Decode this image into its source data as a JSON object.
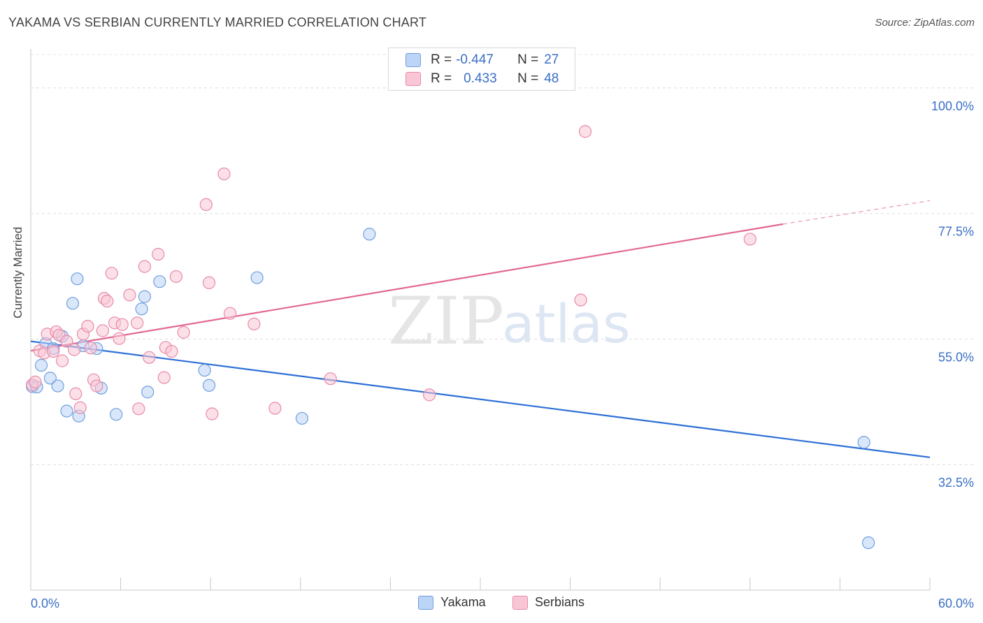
{
  "header": {
    "title": "YAKAMA VS SERBIAN CURRENTLY MARRIED CORRELATION CHART",
    "source": "Source: ZipAtlas.com"
  },
  "legend": {
    "yakama": {
      "r_label": "R =",
      "r_value": "-0.447",
      "n_label": "N =",
      "n_value": "27"
    },
    "serbians": {
      "r_label": "R =",
      "r_value": "0.433",
      "n_label": "N =",
      "n_value": "48"
    },
    "bottom": [
      "Yakama",
      "Serbians"
    ]
  },
  "colors": {
    "yakama_fill": "#bcd4f5",
    "yakama_stroke": "#6f9fe0",
    "yakama_line": "#2c6fd6",
    "serbians_fill": "#f9c6d5",
    "serbians_stroke": "#e88aa8",
    "serbians_line": "#e26893",
    "axis_text": "#3a6fc6"
  },
  "watermark": {
    "zip": "ZIP",
    "atlas": "atlas"
  },
  "chart_data": {
    "type": "scatter",
    "title": "YAKAMA VS SERBIAN CURRENTLY MARRIED CORRELATION CHART",
    "xlabel": "",
    "ylabel": "Currently Married",
    "xlim": [
      0,
      60
    ],
    "ylim": [
      10,
      107
    ],
    "x_tick_labels": [
      "0.0%",
      "60.0%"
    ],
    "y_ticks": [
      32.5,
      55.0,
      77.5,
      100.0
    ],
    "y_tick_labels": [
      "32.5%",
      "55.0%",
      "77.5%",
      "100.0%"
    ],
    "grid": true,
    "legend_position": "top-center",
    "series": [
      {
        "name": "Yakama",
        "points": [
          [
            0.1,
            46.5
          ],
          [
            0.4,
            46.4
          ],
          [
            0.7,
            50.3
          ],
          [
            1.0,
            54.2
          ],
          [
            1.3,
            48.0
          ],
          [
            1.5,
            53.3
          ],
          [
            1.8,
            46.6
          ],
          [
            2.1,
            55.5
          ],
          [
            2.4,
            42.1
          ],
          [
            2.8,
            61.4
          ],
          [
            3.1,
            65.8
          ],
          [
            3.2,
            41.2
          ],
          [
            3.5,
            53.8
          ],
          [
            4.4,
            53.3
          ],
          [
            4.7,
            46.2
          ],
          [
            5.7,
            41.5
          ],
          [
            7.4,
            60.4
          ],
          [
            7.6,
            62.6
          ],
          [
            7.8,
            45.5
          ],
          [
            8.6,
            65.3
          ],
          [
            11.6,
            49.4
          ],
          [
            11.9,
            46.7
          ],
          [
            15.1,
            66.0
          ],
          [
            18.1,
            40.8
          ],
          [
            22.6,
            73.8
          ],
          [
            55.6,
            36.5
          ],
          [
            55.9,
            18.5
          ]
        ],
        "trend": {
          "x0": 0,
          "y0": 54.6,
          "x1": 60,
          "y1": 33.8
        }
      },
      {
        "name": "Serbians",
        "points": [
          [
            0.1,
            46.8
          ],
          [
            0.3,
            47.3
          ],
          [
            0.6,
            52.9
          ],
          [
            0.9,
            52.5
          ],
          [
            1.1,
            55.9
          ],
          [
            1.5,
            52.8
          ],
          [
            1.7,
            56.3
          ],
          [
            1.9,
            55.7
          ],
          [
            2.1,
            51.1
          ],
          [
            2.4,
            54.6
          ],
          [
            2.9,
            53.1
          ],
          [
            3.0,
            45.2
          ],
          [
            3.3,
            42.7
          ],
          [
            3.5,
            55.9
          ],
          [
            3.8,
            57.3
          ],
          [
            4.0,
            53.4
          ],
          [
            4.2,
            47.7
          ],
          [
            4.4,
            46.6
          ],
          [
            4.8,
            56.5
          ],
          [
            4.9,
            62.3
          ],
          [
            5.1,
            61.8
          ],
          [
            5.4,
            66.8
          ],
          [
            5.6,
            57.9
          ],
          [
            5.9,
            55.1
          ],
          [
            6.1,
            57.6
          ],
          [
            6.6,
            62.9
          ],
          [
            7.1,
            57.9
          ],
          [
            7.2,
            42.5
          ],
          [
            7.6,
            68.0
          ],
          [
            7.9,
            51.7
          ],
          [
            8.5,
            70.2
          ],
          [
            8.9,
            48.1
          ],
          [
            9.0,
            53.5
          ],
          [
            9.4,
            52.8
          ],
          [
            9.7,
            66.2
          ],
          [
            10.2,
            56.2
          ],
          [
            11.7,
            79.1
          ],
          [
            11.9,
            65.1
          ],
          [
            12.1,
            41.6
          ],
          [
            12.9,
            84.6
          ],
          [
            13.3,
            59.6
          ],
          [
            14.9,
            57.7
          ],
          [
            16.3,
            42.6
          ],
          [
            20.0,
            47.9
          ],
          [
            26.6,
            45.0
          ],
          [
            36.7,
            62.0
          ],
          [
            37.0,
            92.2
          ],
          [
            48.0,
            72.9
          ]
        ],
        "trend": {
          "x0": 0,
          "y0": 52.9,
          "x1": 50.2,
          "y1": 75.6
        },
        "trend_dashed_to": {
          "x": 60,
          "y": 79.8
        }
      }
    ]
  }
}
